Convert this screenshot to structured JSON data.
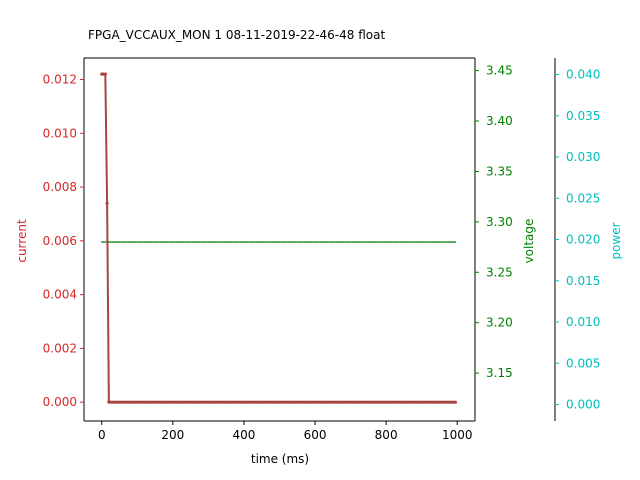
{
  "colors": {
    "current": "#d62728",
    "current_line": "#a84444",
    "voltage": "#008000",
    "power": "#00bfbf",
    "axis": "#000000"
  },
  "chart_data": {
    "type": "line",
    "title": "FPGA_VCCAUX_MON   1   08-11-2019-22-46-48   float",
    "xlabel": "time (ms)",
    "x_ticks": [
      0,
      200,
      400,
      600,
      800,
      1000
    ],
    "xlim": [
      -50,
      1050
    ],
    "grid": false,
    "axes": [
      {
        "id": "current",
        "label": "current",
        "side": "left",
        "ylim": [
          -0.0007,
          0.0128
        ],
        "ticks": [
          "0.000",
          "0.002",
          "0.004",
          "0.006",
          "0.008",
          "0.010",
          "0.012"
        ]
      },
      {
        "id": "voltage",
        "label": "voltage",
        "side": "right",
        "ylim": [
          3.1025,
          3.4625
        ],
        "ticks": [
          "3.15",
          "3.20",
          "3.25",
          "3.30",
          "3.35",
          "3.40",
          "3.45"
        ]
      },
      {
        "id": "power",
        "label": "power",
        "side": "right-outer",
        "ylim": [
          -0.002,
          0.042
        ],
        "ticks": [
          "0.000",
          "0.005",
          "0.010",
          "0.015",
          "0.020",
          "0.025",
          "0.030",
          "0.035",
          "0.040"
        ]
      }
    ],
    "series": [
      {
        "axis": "current",
        "x_start": 0,
        "x_step": 5,
        "count": 200,
        "initial": [
          [
            0,
            0.0122
          ],
          [
            5,
            0.0122
          ],
          [
            10,
            0.0122
          ],
          [
            15,
            0.0074
          ]
        ],
        "baseline": 0.0
      },
      {
        "axis": "voltage",
        "x_start": 0,
        "x_step": 5,
        "count": 200,
        "constant": 3.28
      }
    ]
  }
}
